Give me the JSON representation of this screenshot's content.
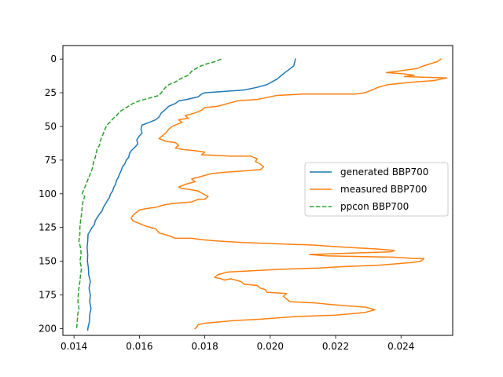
{
  "chart_data": {
    "type": "line",
    "title": "",
    "xlabel": "",
    "ylabel": "",
    "xlim": [
      0.01366,
      0.02558
    ],
    "ylim": [
      205,
      -10
    ],
    "y_inverted": true,
    "grid": false,
    "legend_position": "center-right",
    "xticks": [
      0.014,
      0.016,
      0.018,
      0.02,
      0.022,
      0.024
    ],
    "xtick_labels": [
      "0.014",
      "0.016",
      "0.018",
      "0.020",
      "0.022",
      "0.024"
    ],
    "yticks": [
      0,
      25,
      50,
      75,
      100,
      125,
      150,
      175,
      200
    ],
    "ytick_labels": [
      "0",
      "25",
      "50",
      "75",
      "100",
      "125",
      "150",
      "175",
      "200"
    ],
    "series": [
      {
        "name": "generated BBP700",
        "color": "#1f77b4",
        "dash": "solid",
        "points": [
          [
            0.02077,
            0
          ],
          [
            0.02074,
            3
          ],
          [
            0.02072,
            5
          ],
          [
            0.02062,
            7
          ],
          [
            0.02045,
            10
          ],
          [
            0.02035,
            12
          ],
          [
            0.0202,
            15
          ],
          [
            0.02005,
            17
          ],
          [
            0.0199,
            19
          ],
          [
            0.0196,
            21
          ],
          [
            0.0192,
            23
          ],
          [
            0.0186,
            24
          ],
          [
            0.018,
            25
          ],
          [
            0.0179,
            26
          ],
          [
            0.0178,
            28
          ],
          [
            0.01745,
            30
          ],
          [
            0.0172,
            31
          ],
          [
            0.0171,
            33
          ],
          [
            0.0169,
            35
          ],
          [
            0.01677,
            38
          ],
          [
            0.01667,
            40
          ],
          [
            0.0166,
            43
          ],
          [
            0.0165,
            45
          ],
          [
            0.0163,
            47
          ],
          [
            0.01608,
            49
          ],
          [
            0.01605,
            52
          ],
          [
            0.01608,
            55
          ],
          [
            0.016,
            57
          ],
          [
            0.01592,
            60
          ],
          [
            0.01595,
            63
          ],
          [
            0.01588,
            65
          ],
          [
            0.01575,
            68
          ],
          [
            0.0157,
            70
          ],
          [
            0.01567,
            73
          ],
          [
            0.0156,
            75
          ],
          [
            0.01555,
            78
          ],
          [
            0.01548,
            80
          ],
          [
            0.01544,
            83
          ],
          [
            0.0154,
            85
          ],
          [
            0.01535,
            88
          ],
          [
            0.0153,
            90
          ],
          [
            0.01527,
            93
          ],
          [
            0.01522,
            95
          ],
          [
            0.01518,
            98
          ],
          [
            0.01512,
            100
          ],
          [
            0.01508,
            103
          ],
          [
            0.01502,
            105
          ],
          [
            0.01495,
            108
          ],
          [
            0.0149,
            110
          ],
          [
            0.01485,
            113
          ],
          [
            0.01478,
            115
          ],
          [
            0.0147,
            118
          ],
          [
            0.01465,
            120
          ],
          [
            0.01462,
            123
          ],
          [
            0.01455,
            125
          ],
          [
            0.01448,
            128
          ],
          [
            0.01443,
            130
          ],
          [
            0.01442,
            135
          ],
          [
            0.0144,
            140
          ],
          [
            0.01442,
            145
          ],
          [
            0.01441,
            150
          ],
          [
            0.01444,
            155
          ],
          [
            0.01445,
            160
          ],
          [
            0.0145,
            165
          ],
          [
            0.01446,
            170
          ],
          [
            0.0145,
            175
          ],
          [
            0.01448,
            180
          ],
          [
            0.01452,
            185
          ],
          [
            0.01448,
            190
          ],
          [
            0.01447,
            195
          ],
          [
            0.01443,
            199
          ],
          [
            0.01442,
            201
          ]
        ]
      },
      {
        "name": "measured BBP700",
        "color": "#ff7f0e",
        "dash": "solid",
        "points": [
          [
            0.02522,
            0
          ],
          [
            0.0251,
            2
          ],
          [
            0.0247,
            5
          ],
          [
            0.0245,
            7
          ],
          [
            0.0239,
            9
          ],
          [
            0.02355,
            10
          ],
          [
            0.02408,
            11
          ],
          [
            0.0244,
            12
          ],
          [
            0.0241,
            13
          ],
          [
            0.0254,
            14
          ],
          [
            0.025,
            16
          ],
          [
            0.0244,
            17
          ],
          [
            0.0236,
            19
          ],
          [
            0.0233,
            21
          ],
          [
            0.0231,
            23
          ],
          [
            0.0229,
            25
          ],
          [
            0.0226,
            26
          ],
          [
            0.021,
            26
          ],
          [
            0.0202,
            27
          ],
          [
            0.0198,
            29
          ],
          [
            0.0196,
            30
          ],
          [
            0.019,
            31
          ],
          [
            0.0187,
            33
          ],
          [
            0.0184,
            35
          ],
          [
            0.018,
            36
          ],
          [
            0.0179,
            38
          ],
          [
            0.0177,
            40
          ],
          [
            0.0174,
            42
          ],
          [
            0.0175,
            44
          ],
          [
            0.0172,
            45
          ],
          [
            0.0173,
            47
          ],
          [
            0.017,
            50
          ],
          [
            0.0169,
            52
          ],
          [
            0.0168,
            55
          ],
          [
            0.0167,
            57
          ],
          [
            0.0166,
            59
          ],
          [
            0.0168,
            61
          ],
          [
            0.0171,
            62
          ],
          [
            0.0172,
            64
          ],
          [
            0.0171,
            66
          ],
          [
            0.0173,
            67
          ],
          [
            0.0177,
            68
          ],
          [
            0.018,
            69
          ],
          [
            0.0179,
            71
          ],
          [
            0.0188,
            72
          ],
          [
            0.0194,
            72
          ],
          [
            0.0196,
            74
          ],
          [
            0.01955,
            76
          ],
          [
            0.0197,
            78
          ],
          [
            0.0198,
            80
          ],
          [
            0.0197,
            82
          ],
          [
            0.0192,
            83
          ],
          [
            0.0186,
            84
          ],
          [
            0.0182,
            85
          ],
          [
            0.0179,
            87
          ],
          [
            0.0176,
            89
          ],
          [
            0.0177,
            91
          ],
          [
            0.0174,
            93
          ],
          [
            0.0172,
            95
          ],
          [
            0.0173,
            96
          ],
          [
            0.0176,
            97
          ],
          [
            0.0178,
            98
          ],
          [
            0.01795,
            100
          ],
          [
            0.0181,
            102
          ],
          [
            0.018,
            104
          ],
          [
            0.0178,
            104
          ],
          [
            0.0176,
            106
          ],
          [
            0.0171,
            107
          ],
          [
            0.0168,
            108
          ],
          [
            0.0165,
            110
          ],
          [
            0.0162,
            111
          ],
          [
            0.016,
            112
          ],
          [
            0.0159,
            114
          ],
          [
            0.0158,
            116
          ],
          [
            0.01575,
            118
          ],
          [
            0.0158,
            120
          ],
          [
            0.016,
            122
          ],
          [
            0.0162,
            124
          ],
          [
            0.0165,
            126
          ],
          [
            0.0166,
            129
          ],
          [
            0.0169,
            131
          ],
          [
            0.0171,
            133
          ],
          [
            0.0176,
            133
          ],
          [
            0.0179,
            134
          ],
          [
            0.0184,
            135
          ],
          [
            0.0191,
            136
          ],
          [
            0.0201,
            137
          ],
          [
            0.0213,
            138
          ],
          [
            0.0219,
            139
          ],
          [
            0.0226,
            140
          ],
          [
            0.0233,
            141
          ],
          [
            0.0238,
            142
          ],
          [
            0.0237,
            143
          ],
          [
            0.0225,
            144
          ],
          [
            0.0212,
            145
          ],
          [
            0.0217,
            146
          ],
          [
            0.0238,
            147
          ],
          [
            0.0244,
            148
          ],
          [
            0.0247,
            148
          ],
          [
            0.0246,
            150
          ],
          [
            0.0243,
            151
          ],
          [
            0.0233,
            153
          ],
          [
            0.0222,
            154
          ],
          [
            0.0215,
            155
          ],
          [
            0.0203,
            156
          ],
          [
            0.0195,
            157
          ],
          [
            0.0187,
            158
          ],
          [
            0.0184,
            160
          ],
          [
            0.0183,
            162
          ],
          [
            0.0185,
            163
          ],
          [
            0.0186,
            164
          ],
          [
            0.0188,
            163
          ],
          [
            0.0191,
            165
          ],
          [
            0.0192,
            167
          ],
          [
            0.0196,
            168
          ],
          [
            0.0197,
            170
          ],
          [
            0.01985,
            171
          ],
          [
            0.0199,
            173
          ],
          [
            0.0205,
            174
          ],
          [
            0.0204,
            176
          ],
          [
            0.0205,
            178
          ],
          [
            0.0206,
            180
          ],
          [
            0.0214,
            181
          ],
          [
            0.0218,
            182
          ],
          [
            0.0223,
            183
          ],
          [
            0.0229,
            184
          ],
          [
            0.0232,
            186
          ],
          [
            0.0229,
            188
          ],
          [
            0.022,
            190
          ],
          [
            0.0208,
            191
          ],
          [
            0.0197,
            193
          ],
          [
            0.0189,
            194
          ],
          [
            0.018,
            196
          ],
          [
            0.0178,
            197
          ],
          [
            0.01775,
            199
          ],
          [
            0.0177,
            200
          ]
        ]
      },
      {
        "name": "ppcon BBP700",
        "color": "#2ca02c",
        "dash": "dashed",
        "points": [
          [
            0.0185,
            0
          ],
          [
            0.0183,
            2
          ],
          [
            0.018,
            4
          ],
          [
            0.0178,
            6
          ],
          [
            0.0176,
            9
          ],
          [
            0.0175,
            12
          ],
          [
            0.0173,
            14
          ],
          [
            0.0171,
            17
          ],
          [
            0.0169,
            19
          ],
          [
            0.0168,
            21
          ],
          [
            0.0167,
            24
          ],
          [
            0.0166,
            27
          ],
          [
            0.0163,
            29
          ],
          [
            0.016,
            31
          ],
          [
            0.0158,
            33
          ],
          [
            0.0156,
            36
          ],
          [
            0.0154,
            39
          ],
          [
            0.0153,
            42
          ],
          [
            0.0152,
            44
          ],
          [
            0.0151,
            47
          ],
          [
            0.015,
            49
          ],
          [
            0.01495,
            52
          ],
          [
            0.0149,
            55
          ],
          [
            0.01485,
            58
          ],
          [
            0.0148,
            61
          ],
          [
            0.01478,
            64
          ],
          [
            0.0147,
            67
          ],
          [
            0.01468,
            70
          ],
          [
            0.01465,
            73
          ],
          [
            0.0146,
            76
          ],
          [
            0.01458,
            79
          ],
          [
            0.01455,
            82
          ],
          [
            0.0145,
            85
          ],
          [
            0.01445,
            88
          ],
          [
            0.0144,
            91
          ],
          [
            0.01435,
            94
          ],
          [
            0.0143,
            97
          ],
          [
            0.01425,
            100
          ],
          [
            0.01433,
            102
          ],
          [
            0.01428,
            105
          ],
          [
            0.01425,
            110
          ],
          [
            0.01423,
            115
          ],
          [
            0.0142,
            120
          ],
          [
            0.01418,
            125
          ],
          [
            0.01418,
            130
          ],
          [
            0.01415,
            135
          ],
          [
            0.0142,
            140
          ],
          [
            0.01422,
            145
          ],
          [
            0.01418,
            150
          ],
          [
            0.01423,
            155
          ],
          [
            0.0142,
            160
          ],
          [
            0.01418,
            165
          ],
          [
            0.01415,
            170
          ],
          [
            0.01413,
            175
          ],
          [
            0.01412,
            180
          ],
          [
            0.01415,
            185
          ],
          [
            0.01411,
            190
          ],
          [
            0.0141,
            195
          ],
          [
            0.01408,
            200
          ]
        ]
      }
    ]
  }
}
